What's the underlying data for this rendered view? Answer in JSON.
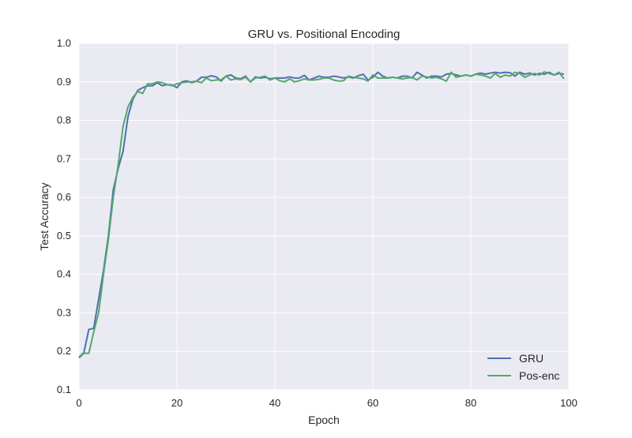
{
  "chart_data": {
    "type": "line",
    "title": "GRU vs. Positional Encoding",
    "xlabel": "Epoch",
    "ylabel": "Test Accuracy",
    "xlim": [
      0,
      100
    ],
    "ylim": [
      0.1,
      1.0
    ],
    "xticks": [
      0,
      20,
      40,
      60,
      80,
      100
    ],
    "yticks": [
      0.1,
      0.2,
      0.3,
      0.4,
      0.5,
      0.6,
      0.7,
      0.8,
      0.9,
      1.0
    ],
    "xtick_labels": [
      "0",
      "20",
      "40",
      "60",
      "80",
      "100"
    ],
    "ytick_labels": [
      "0.1",
      "0.2",
      "0.3",
      "0.4",
      "0.5",
      "0.6",
      "0.7",
      "0.8",
      "0.9",
      "1.0"
    ],
    "grid": true,
    "legend": "lower-right",
    "background": "#eaeaf2",
    "x": [
      0,
      1,
      2,
      3,
      4,
      5,
      6,
      7,
      8,
      9,
      10,
      11,
      12,
      13,
      14,
      15,
      16,
      17,
      18,
      19,
      20,
      21,
      22,
      23,
      24,
      25,
      26,
      27,
      28,
      29,
      30,
      31,
      32,
      33,
      34,
      35,
      36,
      37,
      38,
      39,
      40,
      41,
      42,
      43,
      44,
      45,
      46,
      47,
      48,
      49,
      50,
      51,
      52,
      53,
      54,
      55,
      56,
      57,
      58,
      59,
      60,
      61,
      62,
      63,
      64,
      65,
      66,
      67,
      68,
      69,
      70,
      71,
      72,
      73,
      74,
      75,
      76,
      77,
      78,
      79,
      80,
      81,
      82,
      83,
      84,
      85,
      86,
      87,
      88,
      89,
      90,
      91,
      92,
      93,
      94,
      95,
      96,
      97,
      98,
      99
    ],
    "series": [
      {
        "name": "GRU",
        "color": "#4c72b0",
        "values": [
          0.185,
          0.197,
          0.257,
          0.26,
          0.335,
          0.41,
          0.5,
          0.62,
          0.675,
          0.72,
          0.81,
          0.855,
          0.878,
          0.885,
          0.89,
          0.89,
          0.898,
          0.89,
          0.893,
          0.892,
          0.885,
          0.9,
          0.903,
          0.898,
          0.902,
          0.912,
          0.912,
          0.916,
          0.913,
          0.902,
          0.915,
          0.918,
          0.91,
          0.908,
          0.915,
          0.9,
          0.913,
          0.91,
          0.912,
          0.908,
          0.91,
          0.91,
          0.91,
          0.913,
          0.91,
          0.91,
          0.917,
          0.905,
          0.91,
          0.915,
          0.912,
          0.912,
          0.915,
          0.913,
          0.91,
          0.913,
          0.91,
          0.916,
          0.92,
          0.905,
          0.912,
          0.925,
          0.915,
          0.91,
          0.912,
          0.91,
          0.915,
          0.915,
          0.91,
          0.925,
          0.918,
          0.91,
          0.915,
          0.915,
          0.913,
          0.92,
          0.922,
          0.918,
          0.915,
          0.918,
          0.915,
          0.92,
          0.923,
          0.92,
          0.923,
          0.925,
          0.923,
          0.925,
          0.924,
          0.915,
          0.925,
          0.92,
          0.923,
          0.918,
          0.922,
          0.92,
          0.925,
          0.918,
          0.922,
          0.92
        ]
      },
      {
        "name": "Pos-enc",
        "color": "#55a868",
        "values": [
          0.183,
          0.195,
          0.195,
          0.25,
          0.3,
          0.4,
          0.49,
          0.6,
          0.685,
          0.785,
          0.835,
          0.86,
          0.875,
          0.87,
          0.895,
          0.895,
          0.9,
          0.898,
          0.893,
          0.89,
          0.895,
          0.898,
          0.9,
          0.9,
          0.902,
          0.898,
          0.91,
          0.903,
          0.905,
          0.905,
          0.915,
          0.905,
          0.908,
          0.906,
          0.912,
          0.9,
          0.91,
          0.912,
          0.915,
          0.905,
          0.91,
          0.903,
          0.9,
          0.908,
          0.9,
          0.903,
          0.908,
          0.905,
          0.905,
          0.907,
          0.91,
          0.91,
          0.905,
          0.902,
          0.903,
          0.915,
          0.912,
          0.91,
          0.908,
          0.902,
          0.918,
          0.91,
          0.91,
          0.91,
          0.912,
          0.91,
          0.908,
          0.91,
          0.912,
          0.905,
          0.915,
          0.913,
          0.91,
          0.912,
          0.908,
          0.902,
          0.925,
          0.912,
          0.915,
          0.918,
          0.915,
          0.92,
          0.918,
          0.915,
          0.91,
          0.922,
          0.912,
          0.918,
          0.915,
          0.925,
          0.922,
          0.912,
          0.918,
          0.922,
          0.918,
          0.926,
          0.922,
          0.918,
          0.925,
          0.908
        ]
      }
    ]
  }
}
